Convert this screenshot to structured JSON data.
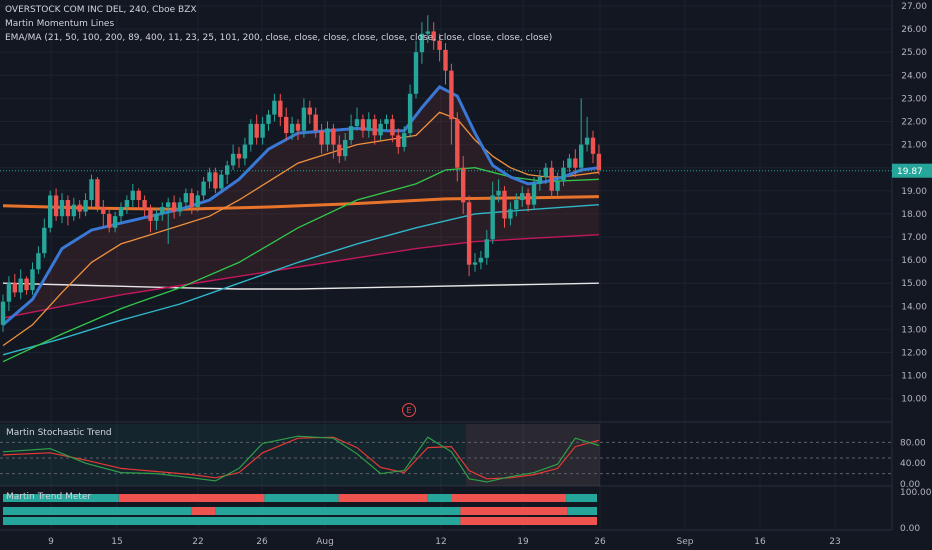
{
  "legend": {
    "line1": "OVERSTOCK COM INC DEL, 240, Cboe BZX",
    "line2": "Martin Momentum Lines",
    "line3": "EMA/MA (21, 50, 100, 200, 89, 400, 11, 23, 25, 101, 200, close, close, close, close, close, close, close, close, close, close)"
  },
  "earnings_marker": "E",
  "price_tag": "19.87",
  "colors": {
    "bg": "#131722",
    "up": "#26a69a",
    "down": "#ef5350",
    "grid": "#1e222d",
    "axis_text": "#b2b5be",
    "ema_fast": "#3a78d6",
    "ema_orange": "#f0913d",
    "ema_green": "#32c84a",
    "ema_cyan": "#2fb6c8",
    "ema_red": "#c2185b",
    "ema_white": "#e6e6e6",
    "ema_thick": "#e8742c"
  },
  "indicators": {
    "stoch_title": "Martin Stochastic Trend",
    "trend_title": "Martin Trend Meter",
    "stoch_ticks": [
      "80.00",
      "40.00",
      "0.00"
    ],
    "trend_ticks": [
      "100.00",
      "0.00"
    ],
    "trend_rows": [
      [
        [
          0,
          "up"
        ],
        [
          0.195,
          "down"
        ],
        [
          0.44,
          "up"
        ],
        [
          0.565,
          "down"
        ],
        [
          0.715,
          "up"
        ],
        [
          0.755,
          "down"
        ],
        [
          0.948,
          "up"
        ]
      ],
      [
        [
          0,
          "up"
        ],
        [
          0.318,
          "down"
        ],
        [
          0.358,
          "up"
        ],
        [
          0.77,
          "down"
        ],
        [
          0.95,
          "up"
        ]
      ],
      [
        [
          0,
          "up"
        ],
        [
          0.77,
          "down"
        ]
      ]
    ]
  },
  "chart_data": {
    "type": "candlestick",
    "title": "OVERSTOCK COM INC DEL, 240, Cboe BZX",
    "y_ticks": [
      "27.00",
      "26.00",
      "25.00",
      "24.00",
      "23.00",
      "22.00",
      "21.00",
      "20.00",
      "19.00",
      "18.00",
      "17.00",
      "16.00",
      "15.00",
      "14.00",
      "13.00",
      "12.00",
      "11.00",
      "10.00"
    ],
    "ylim": [
      9.4,
      27.4
    ],
    "x_ticks": [
      "9",
      "15",
      "22",
      "26",
      "Aug",
      "12",
      "19",
      "26",
      "Sep",
      "16",
      "23"
    ],
    "last_price": 19.87,
    "candles": [
      [
        13.2,
        14.2,
        12.9,
        14.5
      ],
      [
        14.2,
        15.0,
        13.8,
        15.3
      ],
      [
        15.0,
        14.6,
        14.4,
        15.4
      ],
      [
        14.6,
        15.2,
        14.3,
        15.6
      ],
      [
        15.2,
        14.7,
        14.5,
        15.3
      ],
      [
        14.7,
        15.6,
        14.5,
        15.9
      ],
      [
        15.6,
        16.3,
        15.4,
        16.6
      ],
      [
        16.3,
        17.4,
        16.1,
        17.8
      ],
      [
        17.4,
        18.8,
        17.2,
        19.0
      ],
      [
        18.8,
        17.9,
        17.7,
        19.1
      ],
      [
        17.9,
        18.6,
        17.6,
        18.9
      ],
      [
        18.6,
        17.9,
        17.5,
        18.8
      ],
      [
        17.9,
        18.4,
        17.7,
        18.7
      ],
      [
        18.4,
        18.1,
        17.8,
        18.6
      ],
      [
        18.1,
        18.6,
        17.9,
        18.9
      ],
      [
        18.6,
        19.5,
        18.3,
        19.7
      ],
      [
        19.5,
        18.3,
        18.1,
        19.6
      ],
      [
        18.3,
        18.0,
        17.4,
        18.6
      ],
      [
        18.0,
        17.4,
        17.2,
        18.2
      ],
      [
        17.4,
        17.9,
        17.2,
        18.1
      ],
      [
        17.9,
        18.3,
        17.6,
        18.5
      ],
      [
        18.3,
        18.6,
        18.0,
        18.8
      ],
      [
        18.6,
        19.0,
        18.3,
        19.3
      ],
      [
        19.0,
        18.6,
        18.2,
        19.1
      ],
      [
        18.6,
        18.2,
        17.9,
        18.8
      ],
      [
        18.2,
        17.7,
        17.2,
        18.4
      ],
      [
        17.7,
        18.0,
        17.3,
        18.2
      ],
      [
        18.0,
        18.3,
        17.7,
        18.5
      ],
      [
        18.3,
        18.5,
        16.7,
        18.7
      ],
      [
        18.5,
        18.1,
        17.8,
        18.8
      ],
      [
        18.1,
        18.5,
        17.9,
        18.7
      ],
      [
        18.5,
        18.9,
        18.2,
        19.1
      ],
      [
        18.9,
        18.3,
        18.0,
        19.1
      ],
      [
        18.3,
        18.8,
        18.1,
        19.0
      ],
      [
        18.8,
        19.4,
        18.6,
        19.6
      ],
      [
        19.4,
        19.8,
        19.1,
        20.0
      ],
      [
        19.8,
        19.1,
        18.9,
        20.0
      ],
      [
        19.1,
        19.7,
        18.9,
        19.9
      ],
      [
        19.7,
        20.1,
        19.3,
        20.3
      ],
      [
        20.1,
        20.6,
        19.9,
        21.0
      ],
      [
        20.6,
        20.4,
        20.0,
        20.9
      ],
      [
        20.4,
        21.0,
        20.1,
        21.3
      ],
      [
        21.0,
        21.9,
        20.7,
        22.1
      ],
      [
        21.9,
        21.3,
        21.0,
        22.3
      ],
      [
        21.3,
        21.9,
        21.0,
        22.2
      ],
      [
        21.9,
        22.3,
        21.6,
        22.5
      ],
      [
        22.3,
        22.9,
        22.0,
        23.2
      ],
      [
        22.9,
        22.2,
        21.8,
        23.2
      ],
      [
        22.2,
        21.5,
        21.2,
        22.6
      ],
      [
        21.5,
        21.9,
        21.2,
        22.2
      ],
      [
        21.9,
        21.6,
        21.2,
        22.1
      ],
      [
        21.6,
        22.6,
        21.3,
        23.0
      ],
      [
        22.6,
        22.3,
        21.9,
        22.9
      ],
      [
        22.3,
        21.6,
        21.3,
        22.6
      ],
      [
        21.6,
        21.0,
        20.6,
        21.9
      ],
      [
        21.0,
        21.7,
        20.7,
        22.0
      ],
      [
        21.7,
        21.0,
        20.4,
        21.9
      ],
      [
        21.0,
        20.5,
        20.2,
        21.4
      ],
      [
        20.5,
        21.2,
        20.3,
        21.5
      ],
      [
        21.2,
        21.8,
        21.0,
        22.3
      ],
      [
        21.8,
        22.1,
        21.6,
        22.6
      ],
      [
        22.1,
        21.6,
        21.3,
        22.3
      ],
      [
        21.6,
        22.1,
        21.3,
        22.4
      ],
      [
        22.1,
        21.4,
        21.0,
        22.3
      ],
      [
        21.4,
        21.9,
        21.2,
        22.1
      ],
      [
        21.9,
        22.1,
        21.6,
        22.3
      ],
      [
        22.1,
        21.4,
        21.1,
        22.3
      ],
      [
        21.4,
        20.9,
        20.6,
        21.7
      ],
      [
        20.9,
        21.5,
        20.7,
        21.8
      ],
      [
        21.5,
        23.2,
        21.3,
        23.6
      ],
      [
        23.2,
        25.0,
        23.0,
        25.5
      ],
      [
        25.0,
        25.8,
        24.5,
        26.3
      ],
      [
        25.8,
        25.9,
        25.4,
        26.6
      ],
      [
        25.9,
        25.5,
        25.1,
        26.3
      ],
      [
        25.5,
        25.1,
        24.6,
        25.8
      ],
      [
        25.1,
        24.2,
        23.6,
        25.4
      ],
      [
        24.2,
        22.1,
        21.0,
        24.5
      ],
      [
        22.1,
        20.0,
        19.4,
        22.4
      ],
      [
        20.0,
        18.5,
        18.0,
        20.5
      ],
      [
        18.5,
        15.8,
        15.3,
        18.8
      ],
      [
        15.8,
        15.9,
        15.5,
        16.3
      ],
      [
        15.9,
        16.1,
        15.6,
        16.4
      ],
      [
        16.1,
        16.9,
        15.8,
        17.3
      ],
      [
        16.9,
        18.8,
        16.7,
        19.4
      ],
      [
        18.8,
        19.0,
        18.5,
        19.5
      ],
      [
        19.0,
        17.8,
        17.4,
        19.2
      ],
      [
        17.8,
        18.2,
        17.5,
        18.5
      ],
      [
        18.2,
        18.6,
        17.9,
        18.9
      ],
      [
        18.6,
        18.9,
        18.3,
        19.2
      ],
      [
        18.9,
        18.4,
        18.1,
        19.1
      ],
      [
        18.4,
        19.3,
        18.2,
        19.6
      ],
      [
        19.3,
        19.6,
        19.0,
        19.9
      ],
      [
        19.6,
        20.0,
        19.3,
        20.2
      ],
      [
        20.0,
        19.0,
        18.7,
        20.3
      ],
      [
        19.0,
        19.4,
        18.8,
        19.8
      ],
      [
        19.4,
        20.0,
        19.2,
        20.3
      ],
      [
        20.0,
        20.4,
        19.8,
        20.6
      ],
      [
        20.4,
        20.0,
        19.6,
        20.8
      ],
      [
        20.0,
        21.0,
        19.8,
        23.0
      ],
      [
        21.0,
        21.3,
        20.7,
        22.2
      ],
      [
        21.3,
        20.6,
        20.2,
        21.6
      ],
      [
        20.6,
        19.9,
        19.7,
        21.0
      ]
    ],
    "series": [
      {
        "name": "EMA 21",
        "color": "#3a78d6",
        "points": [
          [
            0,
            13.2
          ],
          [
            5,
            14.3
          ],
          [
            10,
            16.5
          ],
          [
            15,
            17.3
          ],
          [
            20,
            17.6
          ],
          [
            25,
            17.9
          ],
          [
            30,
            18.2
          ],
          [
            35,
            18.6
          ],
          [
            40,
            19.5
          ],
          [
            45,
            20.8
          ],
          [
            50,
            21.5
          ],
          [
            55,
            21.6
          ],
          [
            60,
            21.7
          ],
          [
            65,
            21.6
          ],
          [
            68,
            21.6
          ],
          [
            71,
            22.6
          ],
          [
            74,
            23.5
          ],
          [
            77,
            23.1
          ],
          [
            80,
            21.5
          ],
          [
            83,
            20.1
          ],
          [
            86,
            19.6
          ],
          [
            89,
            19.3
          ],
          [
            92,
            19.4
          ],
          [
            95,
            19.6
          ],
          [
            98,
            19.9
          ],
          [
            101,
            20.0
          ]
        ]
      },
      {
        "name": "EMA orange",
        "color": "#f0913d",
        "points": [
          [
            0,
            12.3
          ],
          [
            5,
            13.2
          ],
          [
            10,
            14.6
          ],
          [
            15,
            15.9
          ],
          [
            20,
            16.7
          ],
          [
            25,
            17.1
          ],
          [
            30,
            17.5
          ],
          [
            35,
            17.9
          ],
          [
            40,
            18.6
          ],
          [
            45,
            19.4
          ],
          [
            50,
            20.2
          ],
          [
            55,
            20.6
          ],
          [
            60,
            21.0
          ],
          [
            65,
            21.2
          ],
          [
            70,
            21.4
          ],
          [
            74,
            22.4
          ],
          [
            77,
            22.1
          ],
          [
            80,
            21.2
          ],
          [
            83,
            20.5
          ],
          [
            86,
            20.0
          ],
          [
            89,
            19.7
          ],
          [
            92,
            19.6
          ],
          [
            95,
            19.6
          ],
          [
            98,
            19.7
          ],
          [
            101,
            19.8
          ]
        ]
      },
      {
        "name": "EMA green",
        "color": "#32c84a",
        "points": [
          [
            0,
            11.6
          ],
          [
            10,
            12.8
          ],
          [
            20,
            13.9
          ],
          [
            30,
            14.8
          ],
          [
            40,
            15.9
          ],
          [
            50,
            17.4
          ],
          [
            60,
            18.6
          ],
          [
            70,
            19.3
          ],
          [
            75,
            19.9
          ],
          [
            80,
            20.0
          ],
          [
            86,
            19.6
          ],
          [
            92,
            19.4
          ],
          [
            101,
            19.5
          ]
        ]
      },
      {
        "name": "EMA cyan",
        "color": "#2fb6c8",
        "points": [
          [
            0,
            11.9
          ],
          [
            10,
            12.6
          ],
          [
            20,
            13.4
          ],
          [
            30,
            14.1
          ],
          [
            40,
            15.0
          ],
          [
            50,
            15.9
          ],
          [
            60,
            16.7
          ],
          [
            70,
            17.4
          ],
          [
            80,
            18.0
          ],
          [
            90,
            18.2
          ],
          [
            101,
            18.4
          ]
        ]
      },
      {
        "name": "EMA crimson",
        "color": "#c2185b",
        "points": [
          [
            0,
            13.5
          ],
          [
            10,
            14.0
          ],
          [
            20,
            14.5
          ],
          [
            30,
            14.9
          ],
          [
            40,
            15.3
          ],
          [
            50,
            15.7
          ],
          [
            60,
            16.1
          ],
          [
            70,
            16.5
          ],
          [
            80,
            16.8
          ],
          [
            90,
            16.95
          ],
          [
            101,
            17.1
          ]
        ]
      },
      {
        "name": "EMA white",
        "color": "#e6e6e6",
        "points": [
          [
            0,
            15.0
          ],
          [
            15,
            14.9
          ],
          [
            30,
            14.8
          ],
          [
            40,
            14.75
          ],
          [
            50,
            14.75
          ],
          [
            60,
            14.8
          ],
          [
            70,
            14.85
          ],
          [
            80,
            14.9
          ],
          [
            90,
            14.95
          ],
          [
            101,
            15.0
          ]
        ]
      },
      {
        "name": "EMA thick",
        "color": "#e8742c",
        "points": [
          [
            0,
            18.35
          ],
          [
            15,
            18.25
          ],
          [
            30,
            18.2
          ],
          [
            45,
            18.3
          ],
          [
            60,
            18.45
          ],
          [
            75,
            18.65
          ],
          [
            90,
            18.7
          ],
          [
            101,
            18.75
          ]
        ]
      }
    ],
    "stochastic": {
      "green": [
        [
          0,
          62
        ],
        [
          8,
          68
        ],
        [
          14,
          40
        ],
        [
          20,
          22
        ],
        [
          26,
          20
        ],
        [
          32,
          12
        ],
        [
          36,
          6
        ],
        [
          40,
          30
        ],
        [
          44,
          78
        ],
        [
          50,
          92
        ],
        [
          56,
          88
        ],
        [
          60,
          58
        ],
        [
          64,
          20
        ],
        [
          68,
          26
        ],
        [
          72,
          90
        ],
        [
          76,
          62
        ],
        [
          79,
          10
        ],
        [
          82,
          4
        ],
        [
          86,
          14
        ],
        [
          90,
          22
        ],
        [
          94,
          38
        ],
        [
          97,
          88
        ],
        [
          101,
          74
        ]
      ],
      "red": [
        [
          0,
          56
        ],
        [
          8,
          60
        ],
        [
          14,
          46
        ],
        [
          20,
          30
        ],
        [
          26,
          24
        ],
        [
          32,
          18
        ],
        [
          36,
          12
        ],
        [
          40,
          22
        ],
        [
          44,
          60
        ],
        [
          50,
          88
        ],
        [
          56,
          90
        ],
        [
          60,
          70
        ],
        [
          64,
          32
        ],
        [
          68,
          22
        ],
        [
          72,
          70
        ],
        [
          76,
          72
        ],
        [
          79,
          26
        ],
        [
          82,
          10
        ],
        [
          86,
          12
        ],
        [
          90,
          18
        ],
        [
          94,
          30
        ],
        [
          97,
          72
        ],
        [
          101,
          84
        ]
      ]
    }
  }
}
